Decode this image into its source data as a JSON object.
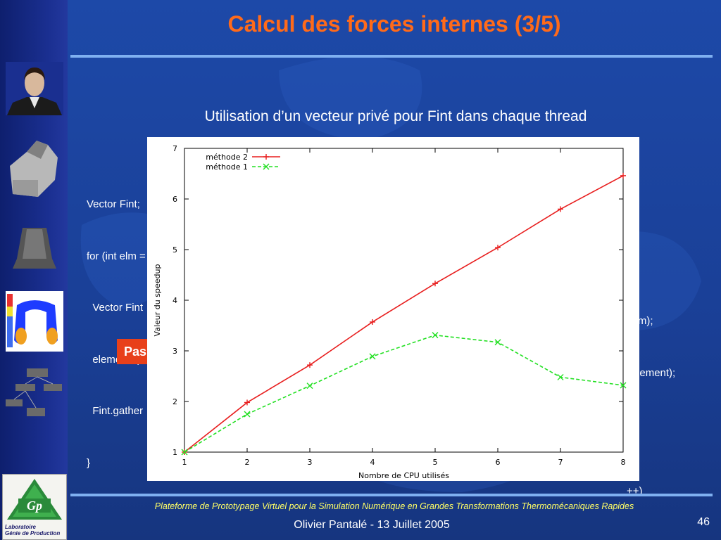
{
  "slide": {
    "title": "Calcul des forces internes (3/5)",
    "subtitle": "Utilisation d’un vecteur privé pour Fint dans chaque thread",
    "code_left": [
      "Vector Fint;",
      "for (int elm =",
      "  Vector Fint",
      "  elements(e",
      "  Fint.gather",
      "}"
    ],
    "code_right": [
      "ntElm);",
      "n, element);"
    ],
    "code_right2": [
      " {",
      "++)"
    ],
    "badge_label": "Pas",
    "footer": "Plateforme de Prototypage Virtuel pour la Simulation Numérique en Grandes Transformations Thermomécaniques Rapides",
    "author": "Olivier Pantalé - 13 Juillet 2005",
    "page_number": "46",
    "logo": {
      "letters": "Gp",
      "text_line1": "Laboratoire",
      "text_line2": "Génie de Production"
    }
  },
  "colors": {
    "title": "#ff6a1a",
    "series1": "#e81e1e",
    "series2": "#22e022",
    "footer": "#ffff66",
    "badge": "#e8401a"
  },
  "chart_data": {
    "type": "line",
    "xlabel": "Nombre de CPU utilisés",
    "ylabel": "Valeur du speedup",
    "x": [
      1,
      2,
      3,
      4,
      5,
      6,
      7,
      8
    ],
    "xlim": [
      1,
      8
    ],
    "ylim": [
      1,
      7
    ],
    "xticks": [
      1,
      2,
      3,
      4,
      5,
      6,
      7,
      8
    ],
    "yticks": [
      1,
      2,
      3,
      4,
      5,
      6,
      7
    ],
    "legend_position": "top-left",
    "grid": false,
    "series": [
      {
        "name": "méthode 2",
        "values": [
          1.0,
          1.98,
          2.72,
          3.57,
          4.33,
          5.04,
          5.8,
          6.46
        ],
        "color": "#e81e1e",
        "marker": "+",
        "dash": false
      },
      {
        "name": "méthode 1",
        "values": [
          1.0,
          1.75,
          2.31,
          2.89,
          3.31,
          3.17,
          2.48,
          2.32
        ],
        "color": "#22e022",
        "marker": "x",
        "dash": true
      }
    ]
  }
}
